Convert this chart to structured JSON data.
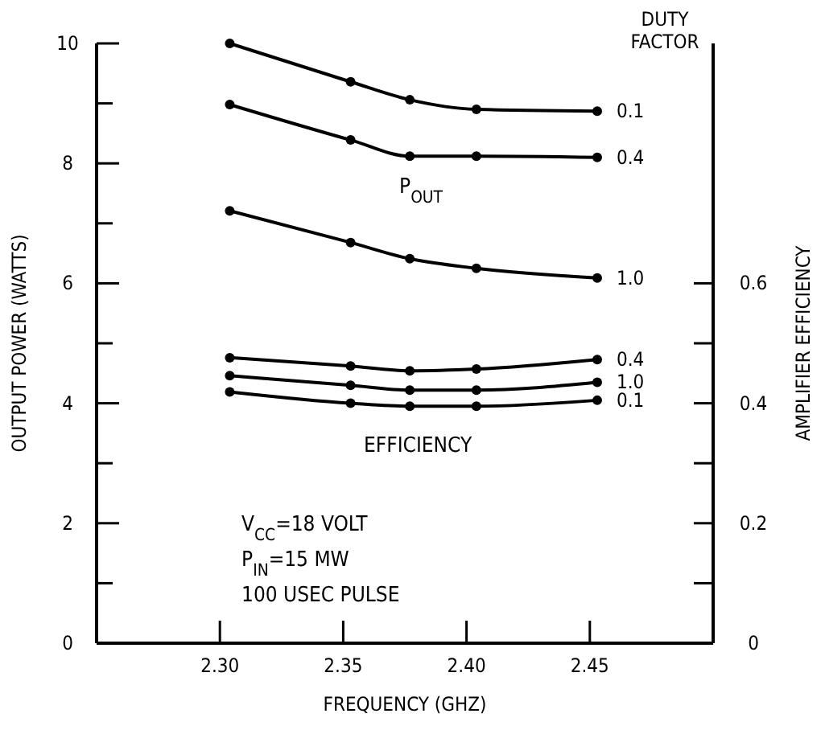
{
  "chart_data": {
    "type": "line",
    "xlabel": "FREQUENCY (GHZ)",
    "ylabel": "OUTPUT POWER (WATTS)",
    "y2label": "AMPLIFIER EFFICIENCY",
    "legend_title": "DUTY FACTOR",
    "grid": false,
    "marker": "circle",
    "line_style": "solid",
    "x": [
      2.304,
      2.353,
      2.377,
      2.404,
      2.453
    ],
    "xlim": [
      2.25,
      2.5
    ],
    "xticks": [
      {
        "value": 2.3,
        "label": "2.30"
      },
      2.35,
      {
        "value": 2.4,
        "label": "2.40"
      },
      2.45
    ],
    "ylim": [
      0,
      10
    ],
    "yticks": [
      0,
      {
        "value": 1,
        "label": null
      },
      2,
      {
        "value": 3,
        "label": null
      },
      4,
      {
        "value": 5,
        "label": null
      },
      6,
      {
        "value": 7,
        "label": null
      },
      8,
      {
        "value": 9,
        "label": null
      },
      10
    ],
    "y2lim": [
      0,
      1
    ],
    "y2ticks": [
      0,
      {
        "value": 0.1,
        "label": null
      },
      0.2,
      {
        "value": 0.3,
        "label": null
      },
      0.4,
      {
        "value": 0.5,
        "label": null
      },
      0.6
    ],
    "series": [
      {
        "name": "0.1",
        "color": "#000000",
        "values": [
          10.0,
          9.36,
          9.06,
          8.9,
          8.87
        ]
      },
      {
        "name": "0.4",
        "color": "#000000",
        "values": [
          8.98,
          8.39,
          8.12,
          8.12,
          8.1
        ]
      },
      {
        "name": "1.0",
        "color": "#000000",
        "values": [
          7.21,
          6.68,
          6.41,
          6.25,
          6.09
        ]
      },
      {
        "name": "0.4",
        "color": "#000000",
        "axis": "y2",
        "values": [
          0.476,
          0.462,
          0.454,
          0.457,
          0.473
        ]
      },
      {
        "name": "1.0",
        "color": "#000000",
        "axis": "y2",
        "values": [
          0.446,
          0.43,
          0.422,
          0.422,
          0.435
        ]
      },
      {
        "name": "0.1",
        "color": "#000000",
        "axis": "y2",
        "values": [
          0.419,
          0.4,
          0.395,
          0.395,
          0.405
        ]
      }
    ],
    "annotations": [
      "P$_{OUT}$",
      "EFFICIENCY",
      "V$_{CC}$=18 VOLT",
      "P$_{IN}$=15 MW",
      "100 USEC PULSE"
    ]
  }
}
